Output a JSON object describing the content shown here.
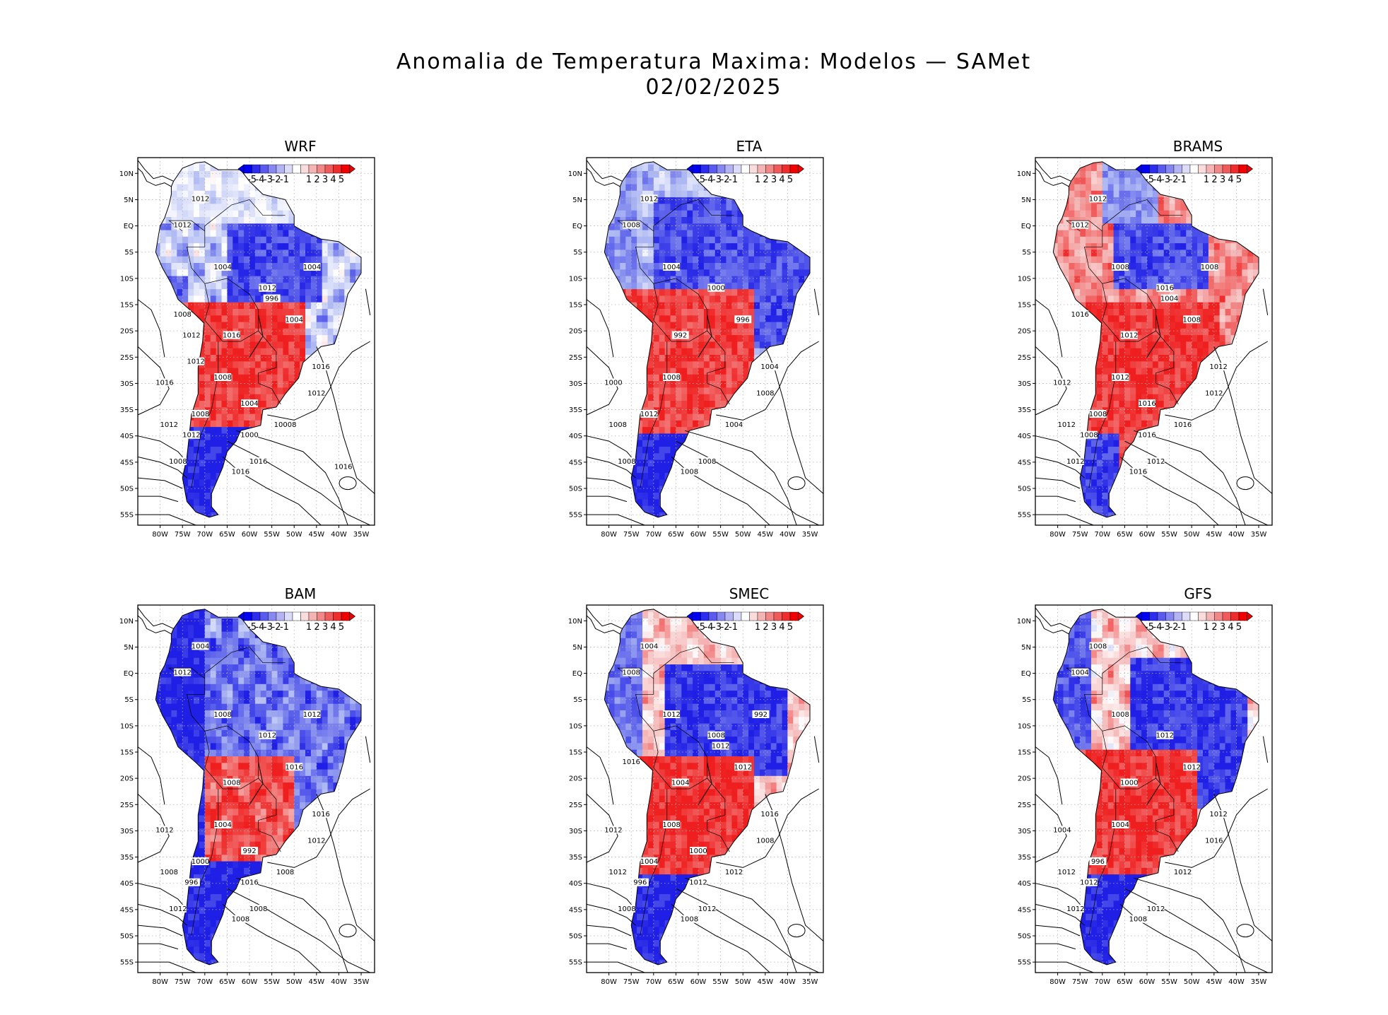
{
  "figure": {
    "title_line1": "Anomalia de Temperatura Maxima: Modelos — SAMet",
    "title_line2": "02/02/2025"
  },
  "colors": {
    "strong_blue": "#1f1fe6",
    "light_blue": "#a9b4f2",
    "white": "#ffffff",
    "light_red": "#f5b5b5",
    "strong_red": "#ef1f1f",
    "contour": "#000000",
    "grid": "#b0b0b0"
  },
  "axes": {
    "lon_labels": [
      "80W",
      "75W",
      "70W",
      "65W",
      "60W",
      "55W",
      "50W",
      "45W",
      "40W",
      "35W"
    ],
    "lat_labels": [
      "10N",
      "5N",
      "EQ",
      "5S",
      "10S",
      "15S",
      "20S",
      "25S",
      "30S",
      "35S",
      "40S",
      "45S",
      "50S",
      "55S"
    ],
    "lon_range": [
      -85,
      -32
    ],
    "lat_range": [
      -57,
      13
    ]
  },
  "colorbar": {
    "labels": [
      "-5",
      "-4",
      "-3",
      "-2",
      "-1",
      "1",
      "2",
      "3",
      "4",
      "5"
    ],
    "colors": [
      "#0000f0",
      "#2d2df0",
      "#5a5af0",
      "#8787f2",
      "#b4b4f5",
      "#dcdcfa",
      "#ffffff",
      "#fadcdc",
      "#f5b4b4",
      "#f28787",
      "#f05a5a",
      "#f02d2d",
      "#f00000"
    ]
  },
  "panels": [
    {
      "name": "WRF",
      "title": "WRF",
      "scheme": "wrf",
      "isobars": [
        "1012",
        "1008",
        "1016",
        "1016",
        "1012",
        "10008",
        "1016",
        "1016",
        "1012",
        "1012",
        "1004",
        "1012",
        "1004",
        "1016",
        "1008",
        "1008",
        "1012",
        "1004",
        "1004",
        "1000",
        "996",
        "1008",
        "1012",
        "1012",
        "1016"
      ]
    },
    {
      "name": "ETA",
      "title": "ETA",
      "scheme": "eta",
      "isobars": [
        "1008",
        "1008",
        "1008",
        "1008",
        "1008",
        "1004",
        "1004",
        "1000",
        "1012",
        "1008",
        "1004",
        "1000",
        "996",
        "992",
        "1008",
        "1012"
      ]
    },
    {
      "name": "BRAMS",
      "title": "BRAMS",
      "scheme": "brams",
      "isobars": [
        "1012",
        "1012",
        "1016",
        "1012",
        "1012",
        "1016",
        "1012",
        "1012",
        "1012",
        "1012",
        "1008",
        "1016",
        "1008",
        "1012",
        "1012",
        "1008",
        "1008",
        "1016",
        "1008",
        "1016",
        "1004",
        "1016"
      ]
    },
    {
      "name": "BAM",
      "title": "BAM",
      "scheme": "bam",
      "isobars": [
        "1008",
        "1012",
        "1008",
        "1008",
        "1012",
        "1008",
        "1016",
        "1012",
        "1004",
        "1012",
        "1008",
        "1012",
        "1016",
        "1008",
        "1004",
        "1000",
        "996",
        "992",
        "1012",
        "1016"
      ]
    },
    {
      "name": "SMEC",
      "title": "SMEC",
      "scheme": "smec",
      "isobars": [
        "1012",
        "1008",
        "1008",
        "1012",
        "1008",
        "1012",
        "1016",
        "1012",
        "1004",
        "1008",
        "1012",
        "1008",
        "1012",
        "1004",
        "1008",
        "1004",
        "996",
        "1000",
        "992",
        "1012",
        "1012",
        "1016"
      ]
    },
    {
      "name": "GFS",
      "title": "GFS",
      "scheme": "gfs",
      "isobars": [
        "1012",
        "1012",
        "1008",
        "1012",
        "1016",
        "1012",
        "1012",
        "1004",
        "1008",
        "1004",
        "1008",
        "1012",
        "1012",
        "1000",
        "1004",
        "996",
        "1012"
      ]
    }
  ]
}
